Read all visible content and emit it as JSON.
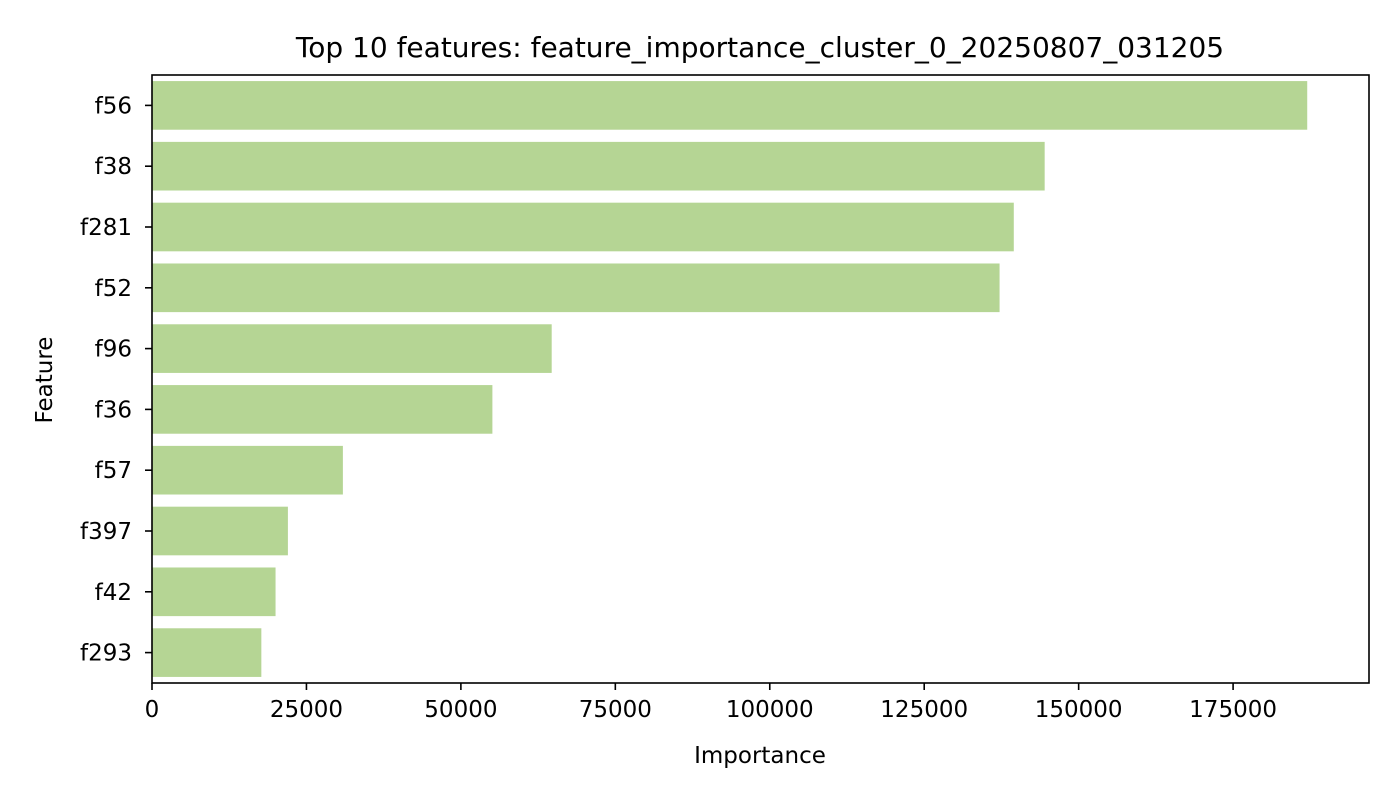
{
  "chart_data": {
    "type": "bar",
    "orientation": "horizontal",
    "title": "Top 10 features: feature_importance_cluster_0_20250807_031205",
    "xlabel": "Importance",
    "ylabel": "Feature",
    "categories": [
      "f56",
      "f38",
      "f281",
      "f52",
      "f96",
      "f36",
      "f57",
      "f397",
      "f42",
      "f293"
    ],
    "values": [
      187000,
      144500,
      139500,
      137200,
      64700,
      55100,
      30900,
      22000,
      20000,
      17700
    ],
    "xlim": [
      0,
      197000
    ],
    "xticks": [
      0,
      25000,
      50000,
      75000,
      100000,
      125000,
      150000,
      175000
    ],
    "grid": false,
    "bar_color": "#b5d594"
  }
}
